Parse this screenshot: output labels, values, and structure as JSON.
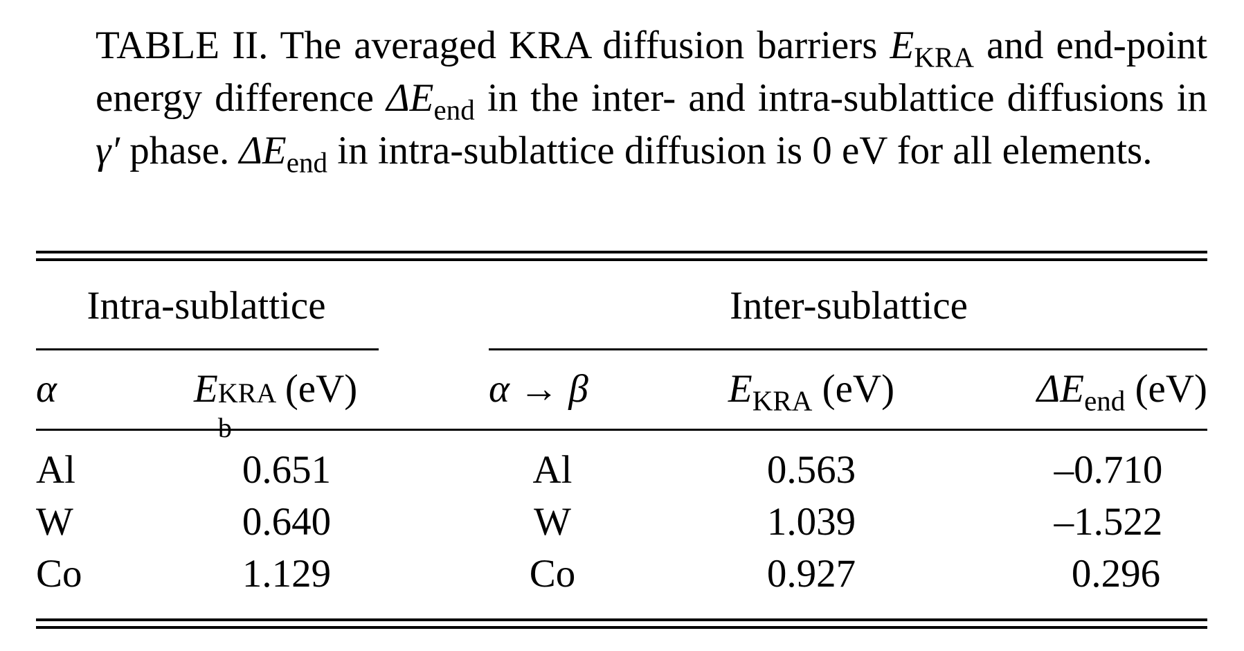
{
  "caption": {
    "label": "TABLE II.",
    "text_1": "The averaged KRA diffusion barriers",
    "sym_E": "E",
    "sub_KRA": "KRA",
    "text_2": "and end-point energy difference",
    "sym_dE": "ΔE",
    "sub_end": "end",
    "text_3": "in the inter- and intra-sublattice diffusions in",
    "sym_gamma": "γ′",
    "text_4": "phase.",
    "text_5": "in intra-sublattice diffusion is 0 eV for all elements."
  },
  "header": {
    "group_intra": "Intra-sublattice",
    "group_inter": "Inter-sublattice",
    "col_alpha": "α",
    "col_eb_sym": "E",
    "col_eb_sup": "KRA",
    "col_eb_sub": "b",
    "col_eb_unit": "(eV)",
    "col_ab": "α → β",
    "col_ekra_sym": "E",
    "col_ekra_sub": "KRA",
    "col_ekra_unit": "(eV)",
    "col_dend_sym": "ΔE",
    "col_dend_sub": "end",
    "col_dend_unit": "(eV)"
  },
  "rows": [
    {
      "alpha": "Al",
      "eb": "0.651",
      "ab": "Al",
      "ekra": "0.563",
      "dend": "–0.710"
    },
    {
      "alpha": "W",
      "eb": "0.640",
      "ab": "W",
      "ekra": "1.039",
      "dend": "–1.522"
    },
    {
      "alpha": "Co",
      "eb": "1.129",
      "ab": "Co",
      "ekra": "0.927",
      "dend": "0.296"
    }
  ]
}
